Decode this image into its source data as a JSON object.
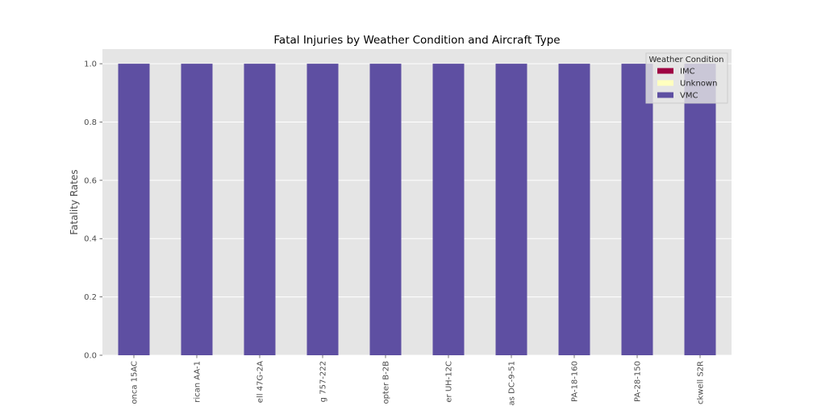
{
  "chart_data": {
    "type": "bar",
    "stacked": true,
    "title": "Fatal Injuries by Weather Condition and Aircraft Type",
    "xlabel": "",
    "ylabel": "Fatality Rates",
    "ylim": [
      0,
      1.05
    ],
    "yticks": [
      "0.0",
      "0.2",
      "0.4",
      "0.6",
      "0.8",
      "1.0"
    ],
    "categories": [
      "onca 15AC",
      "rican AA-1",
      "ell 47G-2A",
      "g 757-222",
      "opter B-2B",
      "er UH-12C",
      "as DC-9-51",
      "PA-18-160",
      "PA-28-150",
      "ckwell S2R"
    ],
    "series": [
      {
        "name": "IMC",
        "color": "#9e0142",
        "values": [
          0,
          0,
          0,
          0,
          0,
          0,
          0,
          0,
          0,
          0
        ]
      },
      {
        "name": "Unknown",
        "color": "#ffffbf",
        "values": [
          0,
          0,
          0,
          0,
          0,
          0,
          0,
          0,
          0,
          0
        ]
      },
      {
        "name": "VMC",
        "color": "#5e4fa2",
        "values": [
          1,
          1,
          1,
          1,
          1,
          1,
          1,
          1,
          1,
          1
        ]
      }
    ],
    "legend": {
      "title": "Weather Condition",
      "placement": "top-right"
    },
    "grid": true,
    "background": "#e5e5e5"
  }
}
